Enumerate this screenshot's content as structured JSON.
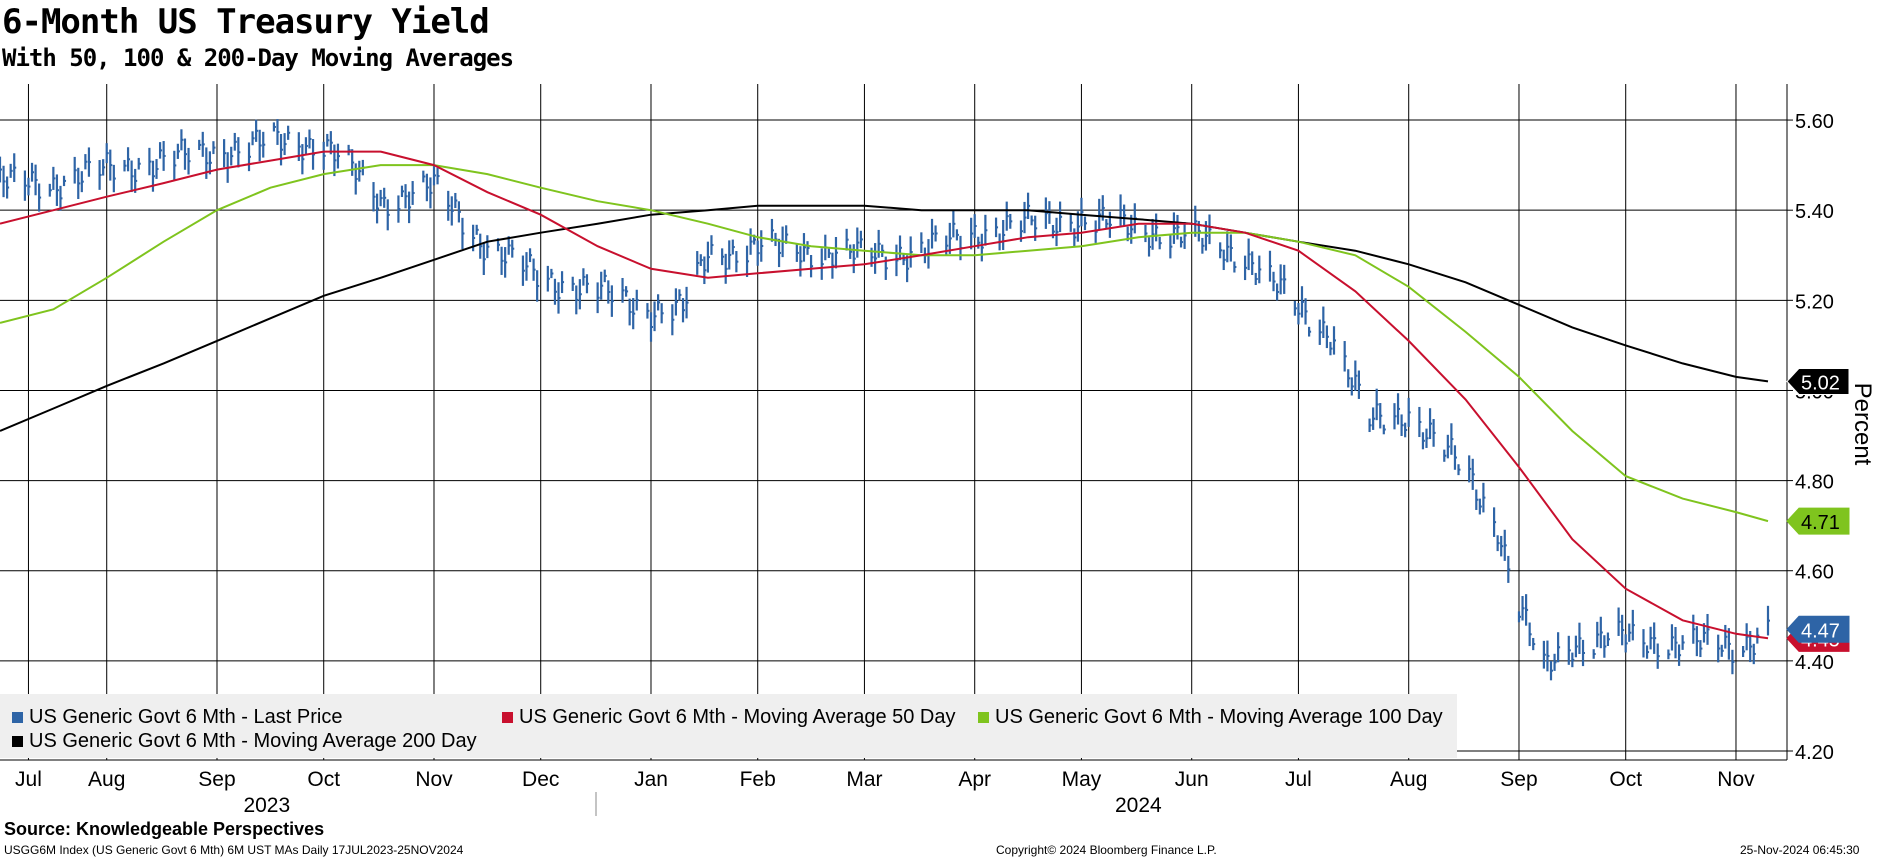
{
  "header": {
    "title": "6-Month US Treasury Yield",
    "subtitle": "With 50, 100 & 200-Day Moving Averages"
  },
  "footer": {
    "source": "Source: Knowledgeable Perspectives",
    "index_info": "USGG6M Index (US Generic Govt 6 Mth) 6M UST MAs  Daily 17JUL2023-25NOV2024",
    "copyright": "Copyright© 2024 Bloomberg Finance L.P.",
    "timestamp": "25-Nov-2024 06:45:30"
  },
  "colors": {
    "last_price": "#2e64a6",
    "ma50": "#c8102e",
    "ma100": "#7fc41e",
    "ma200": "#000000"
  },
  "chart_data": {
    "type": "line",
    "title": "6-Month US Treasury Yield",
    "subtitle": "With 50, 100 & 200-Day Moving Averages",
    "ylabel": "Percent",
    "ylim": [
      4.18,
      5.68
    ],
    "yticks": [
      4.2,
      4.4,
      4.6,
      4.8,
      5.0,
      5.2,
      5.4,
      5.6
    ],
    "ytick_labels": [
      "4.20",
      "4.40",
      "4.60",
      "4.80",
      "5.00",
      "5.20",
      "5.40",
      "5.60"
    ],
    "x_range": [
      "2023-07-17",
      "2024-11-25"
    ],
    "month_ticks": [
      {
        "label": "Jul",
        "date": "2023-07-25"
      },
      {
        "label": "Aug",
        "date": "2023-08-16"
      },
      {
        "label": "Sep",
        "date": "2023-09-16"
      },
      {
        "label": "Oct",
        "date": "2023-10-16"
      },
      {
        "label": "Nov",
        "date": "2023-11-16"
      },
      {
        "label": "Dec",
        "date": "2023-12-16"
      },
      {
        "label": "Jan",
        "date": "2024-01-16"
      },
      {
        "label": "Feb",
        "date": "2024-02-15"
      },
      {
        "label": "Mar",
        "date": "2024-03-16"
      },
      {
        "label": "Apr",
        "date": "2024-04-16"
      },
      {
        "label": "May",
        "date": "2024-05-16"
      },
      {
        "label": "Jun",
        "date": "2024-06-16"
      },
      {
        "label": "Jul",
        "date": "2024-07-16"
      },
      {
        "label": "Aug",
        "date": "2024-08-16"
      },
      {
        "label": "Sep",
        "date": "2024-09-16"
      },
      {
        "label": "Oct",
        "date": "2024-10-16"
      },
      {
        "label": "Nov",
        "date": "2024-11-16"
      }
    ],
    "year_labels": [
      {
        "label": "2023",
        "date": "2023-09-30"
      },
      {
        "label": "2024",
        "date": "2024-06-01"
      }
    ],
    "legend": {
      "placement": "bottom-left",
      "entries": [
        "US Generic Govt 6 Mth - Last Price",
        "US Generic Govt 6 Mth - Moving Average 50 Day",
        "US Generic Govt 6 Mth - Moving Average 100 Day",
        "US Generic Govt 6 Mth - Moving Average 200 Day"
      ]
    },
    "last_values": {
      "ma200": "5.02",
      "ma100": "4.71",
      "last_price": "4.47",
      "ma50": "4.45"
    },
    "series": [
      {
        "name": "US Generic Govt 6 Mth - Last Price",
        "style": "bars",
        "x": [
          "2023-07-17",
          "2023-08-01",
          "2023-08-16",
          "2023-09-01",
          "2023-09-16",
          "2023-10-01",
          "2023-10-16",
          "2023-10-25",
          "2023-11-01",
          "2023-11-16",
          "2023-12-01",
          "2023-12-16",
          "2024-01-01",
          "2024-01-16",
          "2024-01-25",
          "2024-02-01",
          "2024-02-15",
          "2024-03-01",
          "2024-03-16",
          "2024-04-01",
          "2024-04-16",
          "2024-05-01",
          "2024-05-16",
          "2024-06-01",
          "2024-06-16",
          "2024-07-01",
          "2024-07-16",
          "2024-07-25",
          "2024-08-05",
          "2024-08-16",
          "2024-09-01",
          "2024-09-10",
          "2024-09-16",
          "2024-09-23",
          "2024-10-01",
          "2024-10-16",
          "2024-11-01",
          "2024-11-16",
          "2024-11-25"
        ],
        "y": [
          5.46,
          5.46,
          5.49,
          5.51,
          5.53,
          5.55,
          5.55,
          5.48,
          5.42,
          5.45,
          5.32,
          5.25,
          5.22,
          5.18,
          5.18,
          5.3,
          5.32,
          5.31,
          5.3,
          5.31,
          5.35,
          5.37,
          5.38,
          5.36,
          5.34,
          5.3,
          5.18,
          5.13,
          4.93,
          4.95,
          4.82,
          4.7,
          4.52,
          4.38,
          4.44,
          4.45,
          4.44,
          4.43,
          4.47
        ]
      },
      {
        "name": "US Generic Govt 6 Mth - Moving Average 50 Day",
        "x": [
          "2023-07-17",
          "2023-08-01",
          "2023-08-16",
          "2023-09-01",
          "2023-09-16",
          "2023-10-01",
          "2023-10-16",
          "2023-11-01",
          "2023-11-16",
          "2023-12-01",
          "2023-12-16",
          "2024-01-01",
          "2024-01-16",
          "2024-02-01",
          "2024-02-15",
          "2024-03-01",
          "2024-03-16",
          "2024-04-01",
          "2024-04-16",
          "2024-05-01",
          "2024-05-16",
          "2024-06-01",
          "2024-06-16",
          "2024-07-01",
          "2024-07-16",
          "2024-08-01",
          "2024-08-16",
          "2024-09-01",
          "2024-09-16",
          "2024-10-01",
          "2024-10-16",
          "2024-11-01",
          "2024-11-16",
          "2024-11-25"
        ],
        "y": [
          5.37,
          5.4,
          5.43,
          5.46,
          5.49,
          5.51,
          5.53,
          5.53,
          5.5,
          5.44,
          5.39,
          5.32,
          5.27,
          5.25,
          5.26,
          5.27,
          5.28,
          5.3,
          5.32,
          5.34,
          5.35,
          5.37,
          5.37,
          5.35,
          5.31,
          5.22,
          5.11,
          4.98,
          4.83,
          4.67,
          4.56,
          4.49,
          4.46,
          4.45
        ]
      },
      {
        "name": "US Generic Govt 6 Mth - Moving Average 100 Day",
        "x": [
          "2023-07-17",
          "2023-08-01",
          "2023-08-16",
          "2023-09-01",
          "2023-09-16",
          "2023-10-01",
          "2023-10-16",
          "2023-11-01",
          "2023-11-16",
          "2023-12-01",
          "2023-12-16",
          "2024-01-01",
          "2024-01-16",
          "2024-02-01",
          "2024-02-15",
          "2024-03-01",
          "2024-03-16",
          "2024-04-01",
          "2024-04-16",
          "2024-05-01",
          "2024-05-16",
          "2024-06-01",
          "2024-06-16",
          "2024-07-01",
          "2024-07-16",
          "2024-08-01",
          "2024-08-16",
          "2024-09-01",
          "2024-09-16",
          "2024-10-01",
          "2024-10-16",
          "2024-11-01",
          "2024-11-16",
          "2024-11-25"
        ],
        "y": [
          5.15,
          5.18,
          5.25,
          5.33,
          5.4,
          5.45,
          5.48,
          5.5,
          5.5,
          5.48,
          5.45,
          5.42,
          5.4,
          5.37,
          5.34,
          5.32,
          5.31,
          5.3,
          5.3,
          5.31,
          5.32,
          5.34,
          5.35,
          5.35,
          5.33,
          5.3,
          5.23,
          5.13,
          5.03,
          4.91,
          4.81,
          4.76,
          4.73,
          4.71
        ]
      },
      {
        "name": "US Generic Govt 6 Mth - Moving Average 200 Day",
        "x": [
          "2023-07-17",
          "2023-08-01",
          "2023-08-16",
          "2023-09-01",
          "2023-09-16",
          "2023-10-01",
          "2023-10-16",
          "2023-11-01",
          "2023-11-16",
          "2023-12-01",
          "2023-12-16",
          "2024-01-01",
          "2024-01-16",
          "2024-02-01",
          "2024-02-15",
          "2024-03-01",
          "2024-03-16",
          "2024-04-01",
          "2024-04-16",
          "2024-05-01",
          "2024-05-16",
          "2024-06-01",
          "2024-06-16",
          "2024-07-01",
          "2024-07-16",
          "2024-08-01",
          "2024-08-16",
          "2024-09-01",
          "2024-09-16",
          "2024-10-01",
          "2024-10-16",
          "2024-11-01",
          "2024-11-16",
          "2024-11-25"
        ],
        "y": [
          4.91,
          4.96,
          5.01,
          5.06,
          5.11,
          5.16,
          5.21,
          5.25,
          5.29,
          5.33,
          5.35,
          5.37,
          5.39,
          5.4,
          5.41,
          5.41,
          5.41,
          5.4,
          5.4,
          5.4,
          5.39,
          5.38,
          5.37,
          5.35,
          5.33,
          5.31,
          5.28,
          5.24,
          5.19,
          5.14,
          5.1,
          5.06,
          5.03,
          5.02
        ]
      }
    ]
  }
}
